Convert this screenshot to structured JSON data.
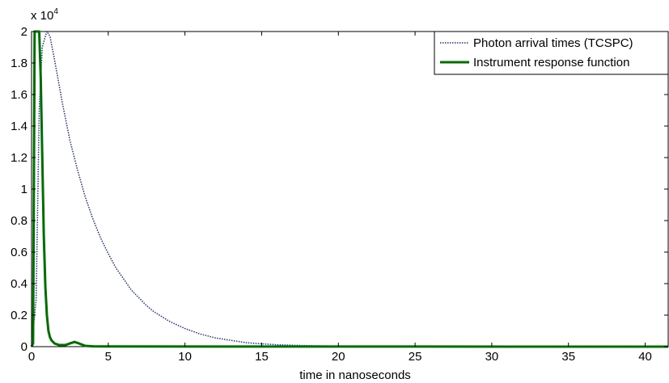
{
  "chart_data": {
    "type": "line",
    "title": "",
    "xlabel": "time in nanoseconds",
    "ylabel": "",
    "y_multiplier_label": "x 10",
    "y_multiplier_exponent": "4",
    "xlim": [
      0,
      41.5
    ],
    "ylim": [
      0,
      2
    ],
    "x_ticks": [
      0,
      5,
      10,
      15,
      20,
      25,
      30,
      35,
      40
    ],
    "x_tick_labels": [
      "0",
      "5",
      "10",
      "15",
      "20",
      "25",
      "30",
      "35",
      "40"
    ],
    "y_ticks": [
      0,
      0.2,
      0.4,
      0.6,
      0.8,
      1,
      1.2,
      1.4,
      1.6,
      1.8,
      2
    ],
    "y_tick_labels": [
      "0",
      "0.2",
      "0.4",
      "0.6",
      "0.8",
      "1",
      "1.2",
      "1.4",
      "1.6",
      "1.8",
      "2"
    ],
    "grid": false,
    "legend_position": "top-right",
    "series": [
      {
        "name": "Photon arrival times (TCSPC)",
        "color": "#1f2f8a",
        "style": "dotted",
        "x": [
          0,
          0.3,
          0.5,
          0.7,
          0.9,
          1.0,
          1.2,
          1.5,
          2,
          2.5,
          3,
          3.5,
          4,
          4.5,
          5,
          5.5,
          6,
          6.5,
          7,
          7.5,
          8,
          8.5,
          9,
          10,
          11,
          12,
          13,
          14,
          15,
          16,
          18,
          20,
          25,
          30,
          35,
          41.5
        ],
        "y": [
          0,
          0.3,
          1.5,
          1.9,
          1.97,
          2.0,
          1.97,
          1.82,
          1.55,
          1.31,
          1.12,
          0.95,
          0.81,
          0.69,
          0.59,
          0.5,
          0.43,
          0.36,
          0.31,
          0.26,
          0.22,
          0.19,
          0.16,
          0.115,
          0.08,
          0.055,
          0.04,
          0.025,
          0.018,
          0.012,
          0.006,
          0.003,
          0.001,
          0.0005,
          0.0002,
          0
        ]
      },
      {
        "name": "Instrument response function",
        "color": "#007000",
        "style": "solid",
        "x": [
          0,
          0.1,
          0.15,
          0.2,
          0.3,
          0.35,
          0.5,
          0.6,
          0.7,
          0.8,
          0.9,
          1.0,
          1.1,
          1.2,
          1.3,
          1.5,
          1.8,
          2.2,
          2.5,
          2.8,
          3.1,
          3.5,
          4,
          5,
          41.5
        ],
        "y": [
          0,
          0.02,
          1.0,
          2.0,
          2.0,
          2.0,
          2.0,
          1.7,
          1.2,
          0.7,
          0.38,
          0.2,
          0.1,
          0.06,
          0.04,
          0.02,
          0.01,
          0.01,
          0.02,
          0.03,
          0.02,
          0.005,
          0.002,
          0.001,
          0
        ]
      }
    ]
  }
}
